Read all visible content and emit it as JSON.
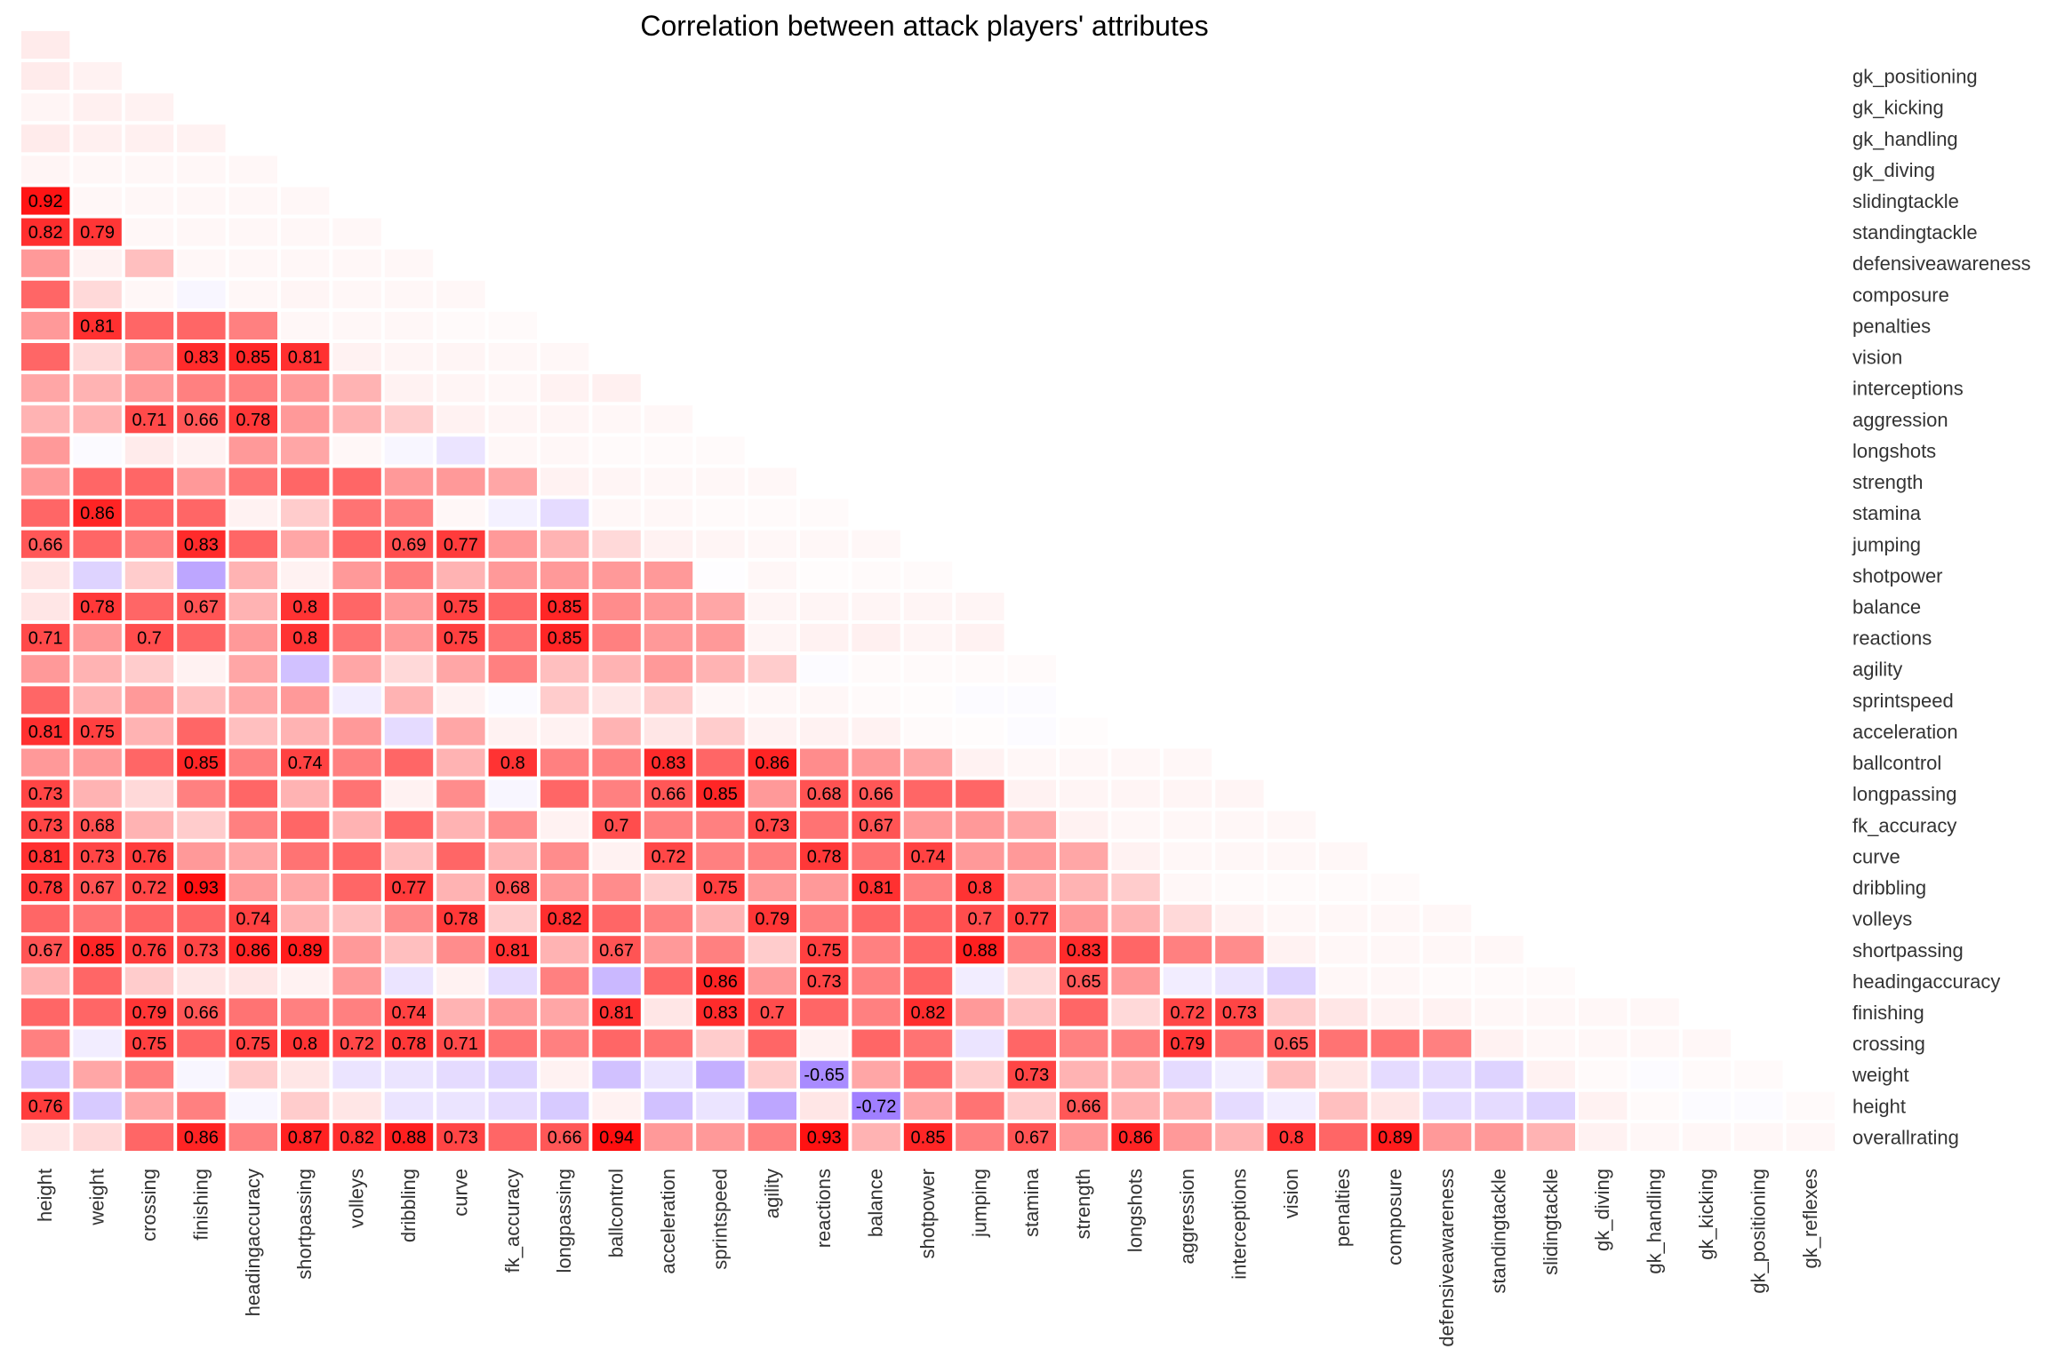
{
  "chart_data": {
    "type": "heatmap",
    "title": "Correlation between attack players' attributes",
    "xlabel": "",
    "ylabel": "",
    "value_range": [
      -1,
      1
    ],
    "colors": {
      "negative": "#7b4dff",
      "zero": "#ffffff",
      "positive": "#ff0000",
      "grid": "#ffffff"
    },
    "x_labels": [
      "height",
      "weight",
      "crossing",
      "finishing",
      "headingaccuracy",
      "shortpassing",
      "volleys",
      "dribbling",
      "curve",
      "fk_accuracy",
      "longpassing",
      "ballcontrol",
      "acceleration",
      "sprintspeed",
      "agility",
      "reactions",
      "balance",
      "shotpower",
      "jumping",
      "stamina",
      "strength",
      "longshots",
      "aggression",
      "interceptions",
      "vision",
      "penalties",
      "composure",
      "defensiveawareness",
      "standingtackle",
      "slidingtackle",
      "gk_diving",
      "gk_handling",
      "gk_kicking",
      "gk_positioning",
      "gk_reflexes"
    ],
    "y_labels": [
      "overallrating",
      "height",
      "weight",
      "crossing",
      "finishing",
      "headingaccuracy",
      "shortpassing",
      "volleys",
      "dribbling",
      "curve",
      "fk_accuracy",
      "longpassing",
      "ballcontrol",
      "acceleration",
      "sprintspeed",
      "agility",
      "reactions",
      "balance",
      "shotpower",
      "jumping",
      "stamina",
      "strength",
      "longshots",
      "aggression",
      "interceptions",
      "vision",
      "penalties",
      "composure",
      "defensiveawareness",
      "standingtackle",
      "slidingtackle",
      "gk_diving",
      "gk_handling",
      "gk_kicking",
      "gk_positioning"
    ],
    "label_threshold": 0.65,
    "rows": [
      [
        0.1,
        0.15,
        0.6,
        0.86,
        0.5,
        0.87,
        0.82,
        0.88,
        0.73,
        0.6,
        0.66,
        0.94,
        0.4,
        0.4,
        0.5,
        0.93,
        0.3,
        0.85,
        0.5,
        0.67,
        0.4,
        0.86,
        0.4,
        0.3,
        0.8,
        0.6,
        0.89,
        0.4,
        0.4,
        0.3,
        0.05,
        0.03,
        0.03,
        0.03,
        0.03
      ],
      [
        0.76,
        -0.3,
        0.35,
        0.5,
        -0.05,
        0.2,
        0.1,
        -0.15,
        -0.15,
        -0.2,
        -0.3,
        0.05,
        -0.35,
        -0.15,
        -0.5,
        0.1,
        -0.72,
        0.35,
        0.55,
        0.2,
        0.66,
        0.3,
        0.3,
        -0.2,
        -0.1,
        0.25,
        0.1,
        -0.2,
        -0.2,
        -0.25,
        0.05,
        0.02,
        -0.02,
        -0.02,
        0.02
      ],
      [
        -0.3,
        0.35,
        0.5,
        -0.05,
        0.2,
        0.1,
        -0.15,
        -0.15,
        -0.2,
        -0.25,
        0.05,
        -0.35,
        -0.15,
        -0.45,
        0.2,
        -0.65,
        0.35,
        0.55,
        0.2,
        0.73,
        0.3,
        0.3,
        -0.2,
        -0.1,
        0.25,
        0.1,
        -0.2,
        -0.2,
        -0.25,
        0.05,
        0.02,
        -0.02,
        0.02,
        0.02
      ],
      [
        0.5,
        -0.1,
        0.75,
        0.6,
        0.75,
        0.8,
        0.72,
        0.78,
        0.71,
        0.55,
        0.5,
        0.6,
        0.55,
        0.2,
        0.6,
        0.05,
        0.6,
        0.55,
        -0.15,
        0.6,
        0.5,
        0.5,
        0.79,
        0.55,
        0.65,
        0.55,
        0.55,
        0.5,
        0.05,
        0.03,
        0.03,
        0.03,
        0.03
      ],
      [
        0.6,
        0.6,
        0.79,
        0.66,
        0.55,
        0.5,
        0.5,
        0.74,
        0.3,
        0.4,
        0.35,
        0.81,
        0.1,
        0.83,
        0.7,
        0.6,
        0.5,
        0.82,
        0.4,
        0.25,
        0.6,
        0.15,
        0.72,
        0.73,
        0.2,
        0.1,
        0.05,
        0.05,
        0.03,
        0.03,
        0.03,
        0.03
      ],
      [
        0.3,
        0.6,
        0.2,
        0.1,
        0.1,
        0.05,
        0.4,
        -0.15,
        0.05,
        -0.2,
        0.5,
        -0.4,
        0.6,
        0.86,
        0.4,
        0.73,
        0.5,
        0.6,
        -0.1,
        0.15,
        0.65,
        0.4,
        -0.1,
        -0.15,
        -0.25,
        0.03,
        0.03,
        0.02,
        0.02,
        0.02
      ],
      [
        0.67,
        0.85,
        0.76,
        0.73,
        0.86,
        0.89,
        0.4,
        0.25,
        0.45,
        0.81,
        0.3,
        0.67,
        0.4,
        0.5,
        0.2,
        0.75,
        0.5,
        0.6,
        0.88,
        0.5,
        0.83,
        0.6,
        0.5,
        0.45,
        0.05,
        0.03,
        0.03,
        0.03,
        0.03
      ],
      [
        0.6,
        0.55,
        0.6,
        0.6,
        0.74,
        0.3,
        0.25,
        0.45,
        0.78,
        0.2,
        0.82,
        0.6,
        0.5,
        0.3,
        0.79,
        0.5,
        0.6,
        0.6,
        0.7,
        0.77,
        0.4,
        0.3,
        0.15,
        0.05,
        0.03,
        0.03,
        0.03,
        0.03
      ],
      [
        0.78,
        0.67,
        0.72,
        0.93,
        0.4,
        0.35,
        0.6,
        0.77,
        0.3,
        0.68,
        0.4,
        0.45,
        0.2,
        0.75,
        0.4,
        0.4,
        0.81,
        0.5,
        0.8,
        0.35,
        0.3,
        0.2,
        0.03,
        0.02,
        0.02,
        0.02,
        0.02
      ],
      [
        0.81,
        0.73,
        0.76,
        0.4,
        0.35,
        0.55,
        0.6,
        0.25,
        0.6,
        0.3,
        0.45,
        0.05,
        0.72,
        0.5,
        0.5,
        0.78,
        0.55,
        0.74,
        0.4,
        0.4,
        0.35,
        0.05,
        0.03,
        0.03,
        0.03,
        0.03
      ],
      [
        0.73,
        0.68,
        0.3,
        0.2,
        0.5,
        0.6,
        0.3,
        0.6,
        0.3,
        0.45,
        0.05,
        0.7,
        0.5,
        0.5,
        0.73,
        0.55,
        0.67,
        0.4,
        0.4,
        0.35,
        0.05,
        0.03,
        0.03,
        0.03,
        0.03
      ],
      [
        0.73,
        0.3,
        0.15,
        0.5,
        0.6,
        0.3,
        0.55,
        0.05,
        0.45,
        -0.05,
        0.6,
        0.5,
        0.66,
        0.85,
        0.4,
        0.68,
        0.66,
        0.6,
        0.6,
        0.05,
        0.04,
        0.04,
        0.04,
        0.04
      ],
      [
        0.4,
        0.4,
        0.6,
        0.85,
        0.5,
        0.74,
        0.5,
        0.6,
        0.3,
        0.8,
        0.5,
        0.5,
        0.83,
        0.6,
        0.86,
        0.45,
        0.4,
        0.35,
        0.05,
        0.03,
        0.03,
        0.03,
        0.03
      ],
      [
        0.81,
        0.75,
        0.3,
        0.6,
        0.25,
        0.3,
        0.4,
        -0.2,
        0.35,
        0.05,
        0.05,
        0.3,
        0.1,
        0.2,
        0.05,
        0.05,
        0.05,
        0.02,
        0.01,
        -0.02,
        0.01
      ],
      [
        0.6,
        0.3,
        0.4,
        0.25,
        0.35,
        0.4,
        -0.1,
        0.3,
        0.05,
        -0.03,
        0.2,
        0.1,
        0.2,
        0.03,
        0.03,
        0.03,
        0.02,
        0.01,
        -0.02,
        -0.02
      ],
      [
        0.4,
        0.3,
        0.2,
        0.05,
        0.35,
        -0.35,
        0.35,
        0.15,
        0.35,
        0.5,
        0.25,
        0.3,
        0.4,
        0.3,
        0.2,
        -0.02,
        0.02,
        0.02,
        0.02,
        0.02
      ],
      [
        0.71,
        0.4,
        0.7,
        0.6,
        0.4,
        0.8,
        0.55,
        0.4,
        0.75,
        0.55,
        0.85,
        0.5,
        0.4,
        0.4,
        0.04,
        0.05,
        0.06,
        0.04,
        0.05
      ],
      [
        0.1,
        0.78,
        0.6,
        0.67,
        0.3,
        0.8,
        0.6,
        0.4,
        0.75,
        0.6,
        0.85,
        0.45,
        0.4,
        0.35,
        0.04,
        0.04,
        0.04,
        0.04,
        0.04
      ],
      [
        0.1,
        -0.25,
        0.2,
        -0.5,
        0.3,
        0.05,
        0.4,
        0.5,
        0.3,
        0.4,
        0.4,
        0.4,
        0.4,
        -0.01,
        0.03,
        0.01,
        0.02,
        0.02
      ],
      [
        0.66,
        0.6,
        0.5,
        0.83,
        0.6,
        0.35,
        0.6,
        0.69,
        0.77,
        0.4,
        0.3,
        0.15,
        0.05,
        0.04,
        0.03,
        0.03,
        0.03
      ],
      [
        0.6,
        0.86,
        0.6,
        0.6,
        0.05,
        0.2,
        0.55,
        0.5,
        0.03,
        -0.08,
        -0.2,
        0.03,
        0.03,
        0.02,
        0.02,
        0.02
      ],
      [
        0.4,
        0.6,
        0.6,
        0.4,
        0.55,
        0.6,
        0.6,
        0.4,
        0.4,
        0.35,
        0.05,
        0.04,
        0.03,
        0.03,
        0.03
      ],
      [
        0.4,
        -0.03,
        0.08,
        0.05,
        0.4,
        0.35,
        0.03,
        -0.05,
        -0.15,
        0.03,
        0.03,
        0.02,
        0.02,
        0.02
      ],
      [
        0.3,
        0.3,
        0.71,
        0.66,
        0.78,
        0.4,
        0.3,
        0.2,
        0.05,
        0.04,
        0.04,
        0.03,
        0.03
      ],
      [
        0.35,
        0.3,
        0.4,
        0.5,
        0.5,
        0.4,
        0.3,
        0.05,
        0.04,
        0.03,
        0.05,
        0.06
      ],
      [
        0.6,
        0.15,
        0.4,
        0.83,
        0.85,
        0.81,
        0.05,
        0.04,
        0.04,
        0.03,
        0.03
      ],
      [
        0.4,
        0.81,
        0.6,
        0.6,
        0.5,
        0.03,
        0.03,
        0.03,
        0.02,
        0.02
      ],
      [
        0.6,
        0.15,
        0.03,
        -0.05,
        0.03,
        0.04,
        0.03,
        0.03,
        0.03
      ],
      [
        0.4,
        0.05,
        0.25,
        0.03,
        0.03,
        0.03,
        0.03,
        0.03
      ],
      [
        0.82,
        0.79,
        0.03,
        0.03,
        0.03,
        0.03,
        0.03
      ],
      [
        0.92,
        0.03,
        0.03,
        0.03,
        0.03,
        0.03
      ],
      [
        0.04,
        0.03,
        0.03,
        0.03,
        0.03
      ],
      [
        0.08,
        0.06,
        0.06,
        0.05
      ],
      [
        0.04,
        0.06,
        0.05
      ],
      [
        0.08,
        0.05
      ],
      [
        0.08
      ]
    ]
  }
}
